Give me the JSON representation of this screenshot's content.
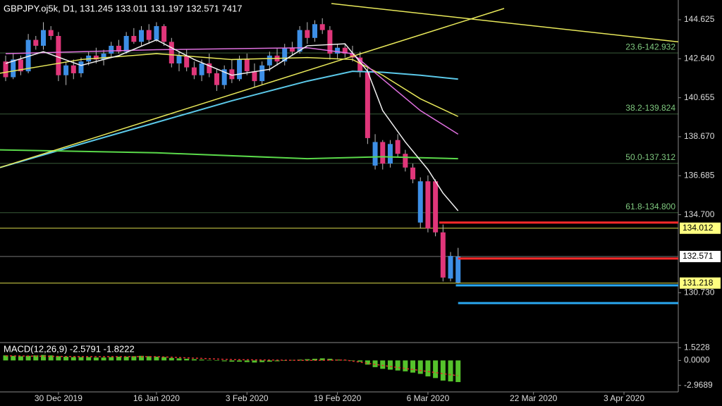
{
  "chart_data": [
    {
      "type": "candlestick",
      "title": "GBPJPY.oj5k, D1, 131.245 133.011 131.197 132.571 7417",
      "up_color": "#3d8fe6",
      "down_color": "#e0367a",
      "xlim": [
        -0.75,
        89.2
      ],
      "ylim": [
        128.19,
        145.63
      ],
      "yticks": [
        144.625,
        {
          "value": 142.64,
          "label": "142.640"
        },
        140.655,
        {
          "value": 138.67,
          "label": "138.670"
        },
        136.685,
        {
          "value": 134.7,
          "label": "134.700"
        },
        {
          "value": 130.73,
          "label": "130.730"
        }
      ],
      "xticks": [
        {
          "value": 7,
          "label": "30 Dec 2019"
        },
        {
          "value": 20,
          "label": "16 Jan 2020"
        },
        {
          "value": 32,
          "label": "3 Feb 2020"
        },
        {
          "value": 44,
          "label": "19 Feb 2020"
        },
        {
          "value": 56,
          "label": "6 Mar 2020"
        },
        {
          "value": 70,
          "label": "22 Mar 2020"
        },
        {
          "value": 82,
          "label": "3 Apr 2020"
        }
      ],
      "candles": [
        [
          142.5,
          142.8,
          141.5,
          141.7
        ],
        [
          141.7,
          142.9,
          141.6,
          142.6
        ],
        [
          142.6,
          142.8,
          141.8,
          142.0
        ],
        [
          142.0,
          143.9,
          141.9,
          143.6
        ],
        [
          143.6,
          143.8,
          143.1,
          143.3
        ],
        [
          143.3,
          144.5,
          143.1,
          144.1
        ],
        [
          144.1,
          144.3,
          143.6,
          143.8
        ],
        [
          143.8,
          144.0,
          141.5,
          141.8
        ],
        [
          141.8,
          142.5,
          141.3,
          142.3
        ],
        [
          142.3,
          142.6,
          141.6,
          141.9
        ],
        [
          141.9,
          142.7,
          141.7,
          142.5
        ],
        [
          142.5,
          143.0,
          142.3,
          142.8
        ],
        [
          142.8,
          143.2,
          142.4,
          142.6
        ],
        [
          142.6,
          143.1,
          142.3,
          142.9
        ],
        [
          142.9,
          143.5,
          142.7,
          143.3
        ],
        [
          143.3,
          143.6,
          142.9,
          143.0
        ],
        [
          143.0,
          144.0,
          142.9,
          143.8
        ],
        [
          143.8,
          144.2,
          143.4,
          143.5
        ],
        [
          143.5,
          144.3,
          143.3,
          144.1
        ],
        [
          144.1,
          144.4,
          143.4,
          143.6
        ],
        [
          143.6,
          144.5,
          143.5,
          144.3
        ],
        [
          144.3,
          144.4,
          143.3,
          143.5
        ],
        [
          143.5,
          143.7,
          142.2,
          142.4
        ],
        [
          142.4,
          143.0,
          142.0,
          142.8
        ],
        [
          142.8,
          143.1,
          142.0,
          142.2
        ],
        [
          142.2,
          142.5,
          141.6,
          141.8
        ],
        [
          141.8,
          142.6,
          141.5,
          142.4
        ],
        [
          142.4,
          142.9,
          141.7,
          141.9
        ],
        [
          141.9,
          142.1,
          141.0,
          141.3
        ],
        [
          141.3,
          142.3,
          141.1,
          142.1
        ],
        [
          142.1,
          142.6,
          141.4,
          141.6
        ],
        [
          141.6,
          142.8,
          141.5,
          142.6
        ],
        [
          142.6,
          142.9,
          141.8,
          142.0
        ],
        [
          142.0,
          142.4,
          141.2,
          141.5
        ],
        [
          141.5,
          142.5,
          141.3,
          142.3
        ],
        [
          142.3,
          143.0,
          142.0,
          142.8
        ],
        [
          142.8,
          143.2,
          142.3,
          142.5
        ],
        [
          142.5,
          143.4,
          142.3,
          143.2
        ],
        [
          143.2,
          143.5,
          142.8,
          143.0
        ],
        [
          143.0,
          144.3,
          142.9,
          144.1
        ],
        [
          144.1,
          144.5,
          143.4,
          143.7
        ],
        [
          143.7,
          144.6,
          143.5,
          144.4
        ],
        [
          144.4,
          144.7,
          143.9,
          144.1
        ],
        [
          144.1,
          144.3,
          142.6,
          142.9
        ],
        [
          142.9,
          143.4,
          142.6,
          143.2
        ],
        [
          143.2,
          143.4,
          142.7,
          142.9
        ],
        [
          142.9,
          143.3,
          142.5,
          142.7
        ],
        [
          142.7,
          143.0,
          141.7,
          142.0
        ],
        [
          142.0,
          142.2,
          138.3,
          138.6
        ],
        [
          137.2,
          138.8,
          137.0,
          138.4
        ],
        [
          138.4,
          138.5,
          137.0,
          137.3
        ],
        [
          137.3,
          138.5,
          137.1,
          138.3
        ],
        [
          138.5,
          138.8,
          137.6,
          137.8
        ],
        [
          137.8,
          138.0,
          136.9,
          137.1
        ],
        [
          137.1,
          137.3,
          136.3,
          136.5
        ],
        [
          134.3,
          136.6,
          134.0,
          136.4
        ],
        [
          136.4,
          136.7,
          133.8,
          134.0
        ],
        [
          136.4,
          136.5,
          133.6,
          133.8
        ],
        [
          133.8,
          134.2,
          131.3,
          131.5
        ],
        [
          131.45,
          132.8,
          131.3,
          132.6
        ],
        [
          131.245,
          133.011,
          131.197,
          132.571
        ]
      ],
      "lines": [
        {
          "color": "#5bc8e8",
          "width": 2,
          "x": [
            -0.75,
            10,
            20,
            30,
            40,
            46,
            50,
            55,
            60
          ],
          "values": [
            137.1,
            138.3,
            139.4,
            140.5,
            141.5,
            142.0,
            141.95,
            141.8,
            141.6
          ]
        },
        {
          "color": "#5ad94a",
          "width": 2,
          "x": [
            -0.75,
            20,
            40,
            50,
            60
          ],
          "values": [
            138.0,
            137.85,
            137.55,
            137.65,
            137.55
          ]
        },
        {
          "color": "#e8e85a",
          "width": 1.5,
          "x": [
            -0.75,
            10,
            20,
            30,
            40,
            46,
            50,
            55,
            60
          ],
          "values": [
            141.9,
            142.6,
            142.9,
            142.6,
            142.7,
            142.6,
            141.8,
            140.6,
            139.7
          ]
        },
        {
          "color": "#e070e0",
          "width": 1.5,
          "x": [
            0,
            20,
            40,
            46,
            50,
            55,
            60
          ],
          "values": [
            142.9,
            143.1,
            143.2,
            142.9,
            141.6,
            140.0,
            138.8
          ]
        },
        {
          "color": "#f0f0f0",
          "width": 1.5,
          "x": [
            0,
            5,
            10,
            15,
            20,
            25,
            30,
            35,
            40,
            45,
            48,
            50,
            53,
            56,
            58,
            60
          ],
          "values": [
            142.4,
            143.0,
            142.3,
            142.8,
            143.6,
            142.6,
            141.8,
            142.1,
            143.3,
            143.4,
            142.0,
            140.0,
            138.4,
            137.0,
            135.8,
            134.9
          ]
        },
        {
          "color": "#e8e85a",
          "width": 1.5,
          "x": [
            -0.75,
            66.1
          ],
          "values": [
            137.1,
            145.2
          ]
        },
        {
          "color": "#e8e85a",
          "width": 1.5,
          "x": [
            43.2,
            89.2
          ],
          "values": [
            145.45,
            143.5
          ]
        },
        {
          "color": "#ff2a2a",
          "width": 3,
          "x": [
            57.5,
            89.2
          ],
          "values": [
            134.3,
            134.3
          ]
        },
        {
          "color": "#ff2a2a",
          "width": 3,
          "x": [
            60,
            89.2
          ],
          "values": [
            132.47,
            132.47
          ]
        },
        {
          "color": "#2aa8f0",
          "width": 3,
          "x": [
            59.7,
            89.2
          ],
          "values": [
            131.1,
            131.1
          ]
        },
        {
          "color": "#2aa8f0",
          "width": 3,
          "x": [
            60,
            89.2
          ],
          "values": [
            130.2,
            130.2
          ]
        }
      ],
      "levels": [
        {
          "value": 134.012,
          "color": "#d8d84a",
          "label_bg": "#ffff80"
        },
        {
          "value": 131.218,
          "color": "#d8d84a",
          "label_bg": "#ffff80"
        },
        {
          "value": 132.571,
          "color": "#777777",
          "label_bg": "#ffffff"
        }
      ],
      "fib_color": "#7fc97f",
      "fib_levels": [
        {
          "value": 142.932,
          "label": "23.6-142.932"
        },
        {
          "value": 139.824,
          "label": "38.2-139.824"
        },
        {
          "value": 137.312,
          "label": "50.0-137.312"
        },
        {
          "value": 134.8,
          "label": "61.8-134.800"
        }
      ]
    },
    {
      "type": "bar",
      "title": "MACD(12,26,9) -2.5791 -1.8222",
      "color": "#55c22b",
      "ylim": [
        -3.75,
        2.13
      ],
      "yticks": [
        1.5228,
        {
          "value": 0,
          "label": "0.0000"
        },
        -2.9689
      ],
      "values": [
        0.6,
        0.55,
        0.5,
        0.55,
        0.6,
        0.65,
        0.6,
        0.5,
        0.45,
        0.4,
        0.4,
        0.4,
        0.35,
        0.35,
        0.4,
        0.45,
        0.45,
        0.5,
        0.55,
        0.5,
        0.45,
        0.4,
        0.3,
        0.25,
        0.2,
        0.15,
        0.1,
        0.05,
        -0.05,
        -0.1,
        -0.15,
        -0.15,
        -0.2,
        -0.25,
        -0.2,
        -0.15,
        -0.1,
        -0.05,
        0.05,
        0.1,
        0.15,
        0.2,
        0.25,
        0.2,
        0.1,
        0.05,
        -0.05,
        -0.15,
        -0.5,
        -0.8,
        -1.0,
        -1.1,
        -1.2,
        -1.3,
        -1.45,
        -1.6,
        -1.9,
        -2.1,
        -2.4,
        -2.5,
        -2.5791
      ],
      "signal": {
        "color": "#e03030",
        "x": [
          0,
          10,
          20,
          30,
          40,
          45,
          50,
          55,
          60
        ],
        "values": [
          0.55,
          0.45,
          0.45,
          0.1,
          0.0,
          0.05,
          -0.6,
          -1.2,
          -1.8222
        ]
      }
    }
  ]
}
